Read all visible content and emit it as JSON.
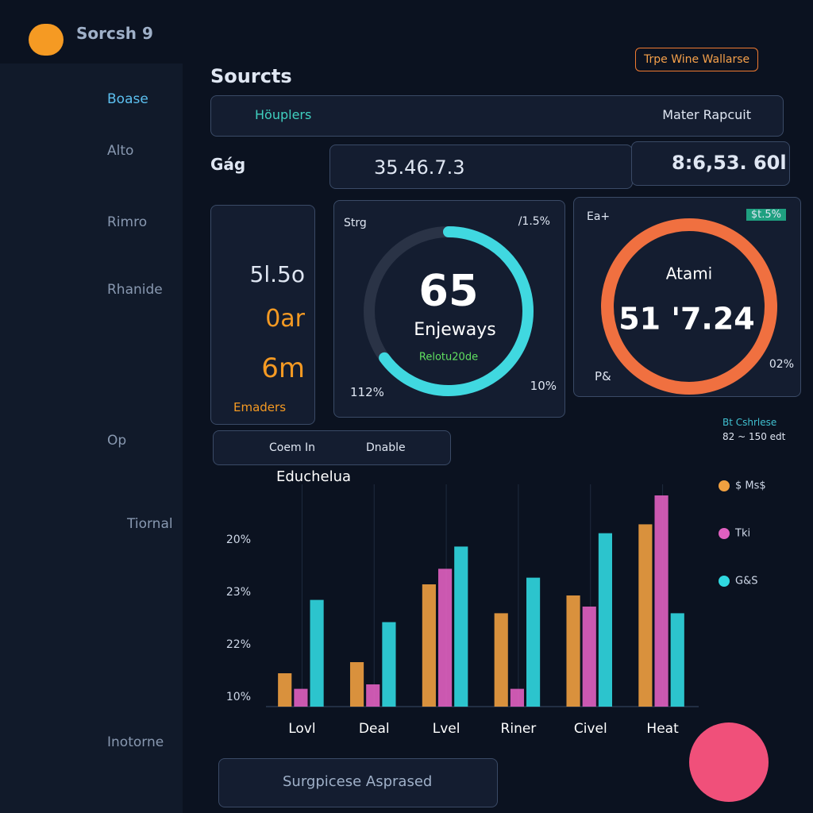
{
  "app": {
    "brand": "Sorcsh 9",
    "badge": "Trpe Wine Wallarse"
  },
  "sidebar": {
    "items": [
      "Boase",
      "Alto",
      "Rimro",
      "Rhanide",
      "Op",
      "Tiornal",
      "Inotorne"
    ]
  },
  "header": {
    "title": "Sourcts",
    "search": "Höuplers",
    "dropdown": "Mater Rapcuit",
    "filter_label": "Gág"
  },
  "stats": [
    "35.46.7.3",
    "8:6,53. 60l"
  ],
  "card": {
    "lines": [
      "5l.5o",
      "0ar",
      "6m"
    ],
    "footer": "Emaders"
  },
  "gauge1": {
    "label": "Strg",
    "badge": "/1.5%",
    "value": 65,
    "caption": "Enjeways",
    "sub": "Relotu20de",
    "left": "112%",
    "right": "10%"
  },
  "gauge2": {
    "label": "Ea+",
    "badge": "$t.5%",
    "title": "Atami",
    "value_text": "51 '7.24",
    "left": "P&",
    "right": "02%"
  },
  "tabs": [
    "Coem In",
    "Dnable"
  ],
  "note": [
    "Bt Cshrlese",
    "82 ~ 150 edt"
  ],
  "chart_data": {
    "type": "bar",
    "title": "Educhelua",
    "categories": [
      "Lovl",
      "Deal",
      "Lvel",
      "Riner",
      "Civel",
      "Heat"
    ],
    "y_labels": [
      "20%",
      "23%",
      "22%",
      "10%"
    ],
    "ylim": [
      0,
      100
    ],
    "series": [
      {
        "name": "$ Ms$",
        "color": "#f0a040",
        "values": [
          15,
          20,
          55,
          42,
          50,
          82
        ]
      },
      {
        "name": "Tki",
        "color": "#e060c0",
        "values": [
          8,
          10,
          62,
          8,
          45,
          95
        ]
      },
      {
        "name": "G&S",
        "color": "#30d8e0",
        "values": [
          48,
          38,
          72,
          58,
          78,
          42
        ]
      }
    ]
  },
  "footer": {
    "banner": "Surgpicese Asprased"
  }
}
